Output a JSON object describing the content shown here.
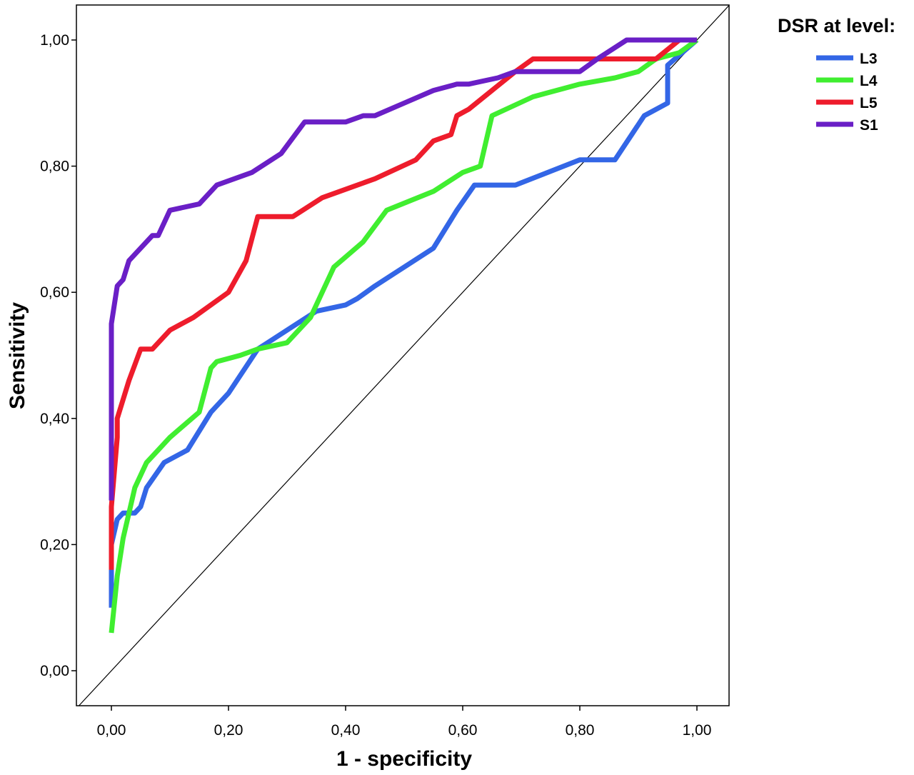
{
  "chart_data": {
    "type": "line",
    "title": "",
    "xlabel": "1 - specificity",
    "ylabel": "Sensitivity",
    "xlim": [
      -0.06,
      1.06
    ],
    "ylim": [
      -0.06,
      1.06
    ],
    "xticks": [
      0,
      0.2,
      0.4,
      0.6,
      0.8,
      1.0
    ],
    "yticks": [
      0,
      0.2,
      0.4,
      0.6,
      0.8,
      1.0
    ],
    "xtick_labels": [
      "0,00",
      "0,20",
      "0,40",
      "0,60",
      "0,80",
      "1,00"
    ],
    "ytick_labels": [
      "0,00",
      "0,20",
      "0,40",
      "0,60",
      "0,80",
      "1,00"
    ],
    "grid": false,
    "legend": {
      "title": "DSR at level:",
      "placement": "top-right outside"
    },
    "reference_line": {
      "x": [
        0,
        1
      ],
      "y": [
        0,
        1
      ],
      "color": "#000000"
    },
    "series": [
      {
        "name": "L3",
        "color": "#3366e6",
        "x": [
          0,
          0,
          0.01,
          0.02,
          0.04,
          0.05,
          0.06,
          0.09,
          0.13,
          0.17,
          0.2,
          0.25,
          0.3,
          0.35,
          0.4,
          0.42,
          0.45,
          0.5,
          0.55,
          0.59,
          0.62,
          0.69,
          0.8,
          0.86,
          0.91,
          0.95,
          0.95,
          1.0
        ],
        "y": [
          0.1,
          0.2,
          0.24,
          0.25,
          0.25,
          0.26,
          0.29,
          0.33,
          0.35,
          0.41,
          0.44,
          0.51,
          0.54,
          0.57,
          0.58,
          0.59,
          0.61,
          0.64,
          0.67,
          0.73,
          0.77,
          0.77,
          0.81,
          0.81,
          0.88,
          0.9,
          0.96,
          1.0
        ]
      },
      {
        "name": "L4",
        "color": "#40ee30",
        "x": [
          0,
          0.01,
          0.02,
          0.03,
          0.04,
          0.06,
          0.08,
          0.1,
          0.15,
          0.17,
          0.18,
          0.22,
          0.25,
          0.3,
          0.34,
          0.38,
          0.43,
          0.47,
          0.55,
          0.6,
          0.63,
          0.65,
          0.72,
          0.8,
          0.86,
          0.9,
          0.93,
          0.97,
          1.0
        ],
        "y": [
          0.06,
          0.15,
          0.21,
          0.25,
          0.29,
          0.33,
          0.35,
          0.37,
          0.41,
          0.48,
          0.49,
          0.5,
          0.51,
          0.52,
          0.56,
          0.64,
          0.68,
          0.73,
          0.76,
          0.79,
          0.8,
          0.88,
          0.91,
          0.93,
          0.94,
          0.95,
          0.97,
          0.98,
          1.0
        ]
      },
      {
        "name": "L5",
        "color": "#ee1c2c",
        "x": [
          0,
          0,
          0.01,
          0.01,
          0.03,
          0.05,
          0.07,
          0.1,
          0.14,
          0.2,
          0.23,
          0.25,
          0.31,
          0.36,
          0.45,
          0.52,
          0.55,
          0.58,
          0.59,
          0.61,
          0.65,
          0.69,
          0.72,
          0.85,
          0.93,
          0.97,
          1.0
        ],
        "y": [
          0.16,
          0.26,
          0.37,
          0.4,
          0.46,
          0.51,
          0.51,
          0.54,
          0.56,
          0.6,
          0.65,
          0.72,
          0.72,
          0.75,
          0.78,
          0.81,
          0.84,
          0.85,
          0.88,
          0.89,
          0.92,
          0.95,
          0.97,
          0.97,
          0.97,
          1.0,
          1.0
        ]
      },
      {
        "name": "S1",
        "color": "#6a1fc6",
        "x": [
          0,
          0,
          0.01,
          0.02,
          0.03,
          0.05,
          0.07,
          0.08,
          0.1,
          0.15,
          0.18,
          0.24,
          0.29,
          0.33,
          0.37,
          0.4,
          0.43,
          0.45,
          0.5,
          0.55,
          0.59,
          0.61,
          0.66,
          0.69,
          0.8,
          0.83,
          0.88,
          0.95,
          1.0
        ],
        "y": [
          0.27,
          0.55,
          0.61,
          0.62,
          0.65,
          0.67,
          0.69,
          0.69,
          0.73,
          0.74,
          0.77,
          0.79,
          0.82,
          0.87,
          0.87,
          0.87,
          0.88,
          0.88,
          0.9,
          0.92,
          0.93,
          0.93,
          0.94,
          0.95,
          0.95,
          0.97,
          1.0,
          1.0,
          1.0
        ]
      }
    ]
  }
}
